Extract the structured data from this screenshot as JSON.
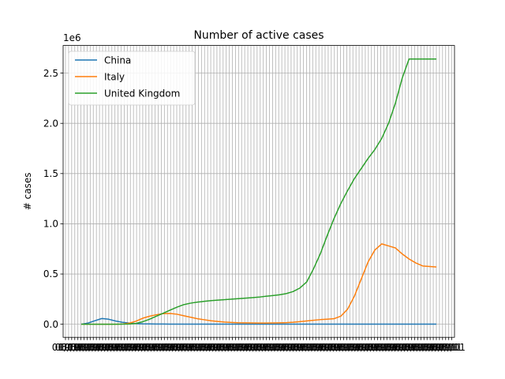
{
  "chart_data": {
    "type": "line",
    "title": "Number of active cases",
    "xlabel": "",
    "ylabel": "# cases",
    "y_offset_text": "1e6",
    "ylim": [
      -0.13,
      2.775
    ],
    "yticks": [
      0.0,
      0.5,
      1.0,
      1.5,
      2.0,
      2.5
    ],
    "ytick_labels": [
      "0.0",
      "0.5",
      "1.0",
      "1.5",
      "2.0",
      "2.5"
    ],
    "grid": true,
    "legend_position": "top-left",
    "x": [
      "2020-01-22",
      "2020-01-29",
      "2020-02-05",
      "2020-02-12",
      "2020-02-19",
      "2020-02-26",
      "2020-03-04",
      "2020-03-11",
      "2020-03-18",
      "2020-03-25",
      "2020-04-01",
      "2020-04-08",
      "2020-04-15",
      "2020-04-22",
      "2020-04-29",
      "2020-05-06",
      "2020-05-13",
      "2020-05-20",
      "2020-05-27",
      "2020-06-03",
      "2020-06-10",
      "2020-06-17",
      "2020-06-24",
      "2020-07-01",
      "2020-07-08",
      "2020-07-15",
      "2020-07-22",
      "2020-07-29",
      "2020-08-05",
      "2020-08-12",
      "2020-08-19",
      "2020-08-26",
      "2020-09-02",
      "2020-09-09",
      "2020-09-16",
      "2020-09-23",
      "2020-09-30",
      "2020-10-07",
      "2020-10-14",
      "2020-10-21",
      "2020-10-28",
      "2020-11-04",
      "2020-11-11",
      "2020-11-18",
      "2020-11-25",
      "2020-12-02",
      "2020-12-09",
      "2020-12-16",
      "2020-12-23",
      "2020-12-30",
      "2021-01-06",
      "2021-01-13",
      "2021-01-18"
    ],
    "xtick_labels": [
      "01/01",
      "01/15",
      "02/01",
      "02/15",
      "03/01",
      "03/15",
      "04/01",
      "04/15",
      "05/01",
      "05/15",
      "06/01",
      "06/15",
      "07/01",
      "07/15",
      "08/01",
      "08/15",
      "09/01",
      "09/15",
      "10/01",
      "10/15",
      "11/01",
      "11/15",
      "12/01",
      "12/15",
      "01/01",
      "01/15",
      "02/01",
      "02/15",
      "03/01",
      "03/15",
      "04/01",
      "04/15",
      "05/01",
      "05/15",
      "06/01",
      "06/15",
      "07/01",
      "07/15",
      "08/01",
      "08/15",
      "09/01",
      "09/15",
      "10/01",
      "10/15",
      "11/01",
      "11/15",
      "12/01",
      "12/15",
      "01/01",
      "01/15",
      "02/01",
      "02/15",
      "03/01",
      "03/15",
      "04/01",
      "04/15",
      "05/01",
      "05/15",
      "06/01",
      "06/15",
      "07/01",
      "07/15",
      "08/01",
      "08/15",
      "09/01",
      "09/15",
      "10/01",
      "10/15",
      "11/01",
      "11/15",
      "12/01",
      "12/15",
      "01/01",
      "01/15",
      "02/01",
      "02/15",
      "03/01",
      "03/15",
      "04/01",
      "04/15",
      "05/01",
      "05/15",
      "06/01",
      "06/15",
      "07/01",
      "07/15",
      "08/01",
      "08/15",
      "09/01",
      "09/15",
      "10/01",
      "10/15",
      "11/01",
      "11/15",
      "12/01",
      "12/15",
      "01/01",
      "01/15",
      "02/01",
      "02/15",
      "03/01",
      "03/15",
      "04/01",
      "04/15",
      "05/01",
      "05/15",
      "06/01",
      "06/15",
      "07/01",
      "07/15",
      "08/01",
      "08/15",
      "09/01",
      "09/15",
      "10/01",
      "10/15",
      "11/01",
      "11/15",
      "12/01",
      "12/15",
      "01/01",
      "01/15",
      "02/01",
      "02/15",
      "03/01",
      "03/15",
      "04/01",
      "04/15",
      "05/01",
      "05/15",
      "06/01",
      "06/15",
      "07/01",
      "07/15",
      "08/01",
      "08/15",
      "09/01",
      "09/15",
      "10/01",
      "10/15",
      "11/01",
      "11/15",
      "12/01",
      "12/15",
      "01/01",
      "01/15",
      "02/01",
      "02/15",
      "03/01",
      "03/15",
      "04/01",
      "04/15",
      "05/01",
      "05/15",
      "06/01",
      "06/15",
      "07/01",
      "07/15",
      "08/01",
      "08/15",
      "09/01",
      "09/15",
      "10/01",
      "10/15",
      "11/01",
      "11/15",
      "12/01",
      "12/15",
      "01/01",
      "01/15",
      "02/01",
      "02/15",
      "03/01",
      "03/15",
      "04/01",
      "04/15",
      "05/01",
      "05/15",
      "06/01",
      "06/15",
      "07/01",
      "07/15",
      "08/01",
      "08/15",
      "09/01",
      "09/15",
      "10/01",
      "10/15",
      "11/01",
      "11/15",
      "12/01",
      "12/15",
      "01/01",
      "01/15",
      "02/01",
      "02/15",
      "03/01",
      "03/15",
      "04/01",
      "04/15",
      "05/01",
      "05/15",
      "06/01",
      "06/15",
      "07/01",
      "07/15",
      "08/01",
      "08/15",
      "09/01",
      "09/15",
      "10/01",
      "10/15",
      "11/01",
      "11/15",
      "12/01",
      "12/15",
      "01/01",
      "01/15",
      "02/01",
      "02/15",
      "03/01",
      "03/15",
      "04/01",
      "04/15",
      "05/01",
      "05/15",
      "06/01",
      "06/15",
      "07/01",
      "07/15",
      "08/01",
      "08/15",
      "09/01",
      "09/15",
      "10/01",
      "10/15",
      "11/01",
      "11/15",
      "12/01",
      "12/15",
      "01/01",
      "01/15",
      "02/01",
      "02/15",
      "03/01",
      "03/15",
      "04/01",
      "04/15",
      "05/01",
      "05/15",
      "06/01",
      "06/15",
      "07/01",
      "07/15",
      "08/01",
      "08/15",
      "09/01",
      "09/15",
      "10/01",
      "10/15",
      "11/01",
      "11/15",
      "12/01",
      "12/15",
      "01/01",
      "01/15",
      "02/01",
      "02/15",
      "03/01",
      "03/15",
      "04/01",
      "04/15",
      "05/01",
      "05/15",
      "06/01",
      "06/15",
      "07/01",
      "07/15",
      "08/01",
      "08/15",
      "09/01",
      "09/15",
      "10/01",
      "10/15",
      "11/01",
      "11/15",
      "12/01",
      "12/15",
      "01/01",
      "01/15",
      "02/01",
      "02/15",
      "03/01",
      "03/15",
      "04/01",
      "04/15",
      "05/01",
      "05/15",
      "06/01",
      "06/15",
      "07/01",
      "07/15",
      "08/01",
      "08/15",
      "09/01",
      "09/15",
      "10/01",
      "10/15",
      "11/01",
      "11/15",
      "12/01",
      "12/15",
      "01/01",
      "01/15",
      "02/01",
      "02/15",
      "03/01",
      "03/15",
      "04/01",
      "04/15",
      "05/01",
      "05/15",
      "06/01",
      "06/15",
      "07/01",
      "07/15",
      "08/01",
      "08/15",
      "09/01",
      "09/15",
      "10/01",
      "10/15",
      "11/01",
      "11/15",
      "12/01",
      "12/15",
      "01/01",
      "01/15",
      "02/01",
      "02/15",
      "03/01",
      "03/15",
      "04/01",
      "04/15",
      "05/01",
      "05/15",
      "06/01",
      "06/15",
      "07/01",
      "07/15",
      "08/01",
      "08/15",
      "09/01",
      "09/15",
      "10/01",
      "10/15",
      "11/01",
      "11/15",
      "12/01",
      "12/15",
      "01/01",
      "01/15",
      "02/01",
      "02/15",
      "03/01",
      "03/15",
      "04/01",
      "04/15",
      "05/01",
      "05/15",
      "06/01",
      "06/15",
      "07/01",
      "07/15",
      "08/01",
      "08/15",
      "09/01",
      "09/15",
      "10/01",
      "10/15",
      "11/01",
      "11/15",
      "12/01",
      "12/15",
      "01/01",
      "01/15",
      "02/01",
      "02/15",
      "03/01",
      "03/15",
      "04/01",
      "04/15",
      "05/01",
      "05/15",
      "06/01",
      "06/15",
      "07/01",
      "07/15",
      "08/01",
      "08/15",
      "09/01",
      "09/15",
      "10/01",
      "10/15",
      "11/01",
      "11/15",
      "12/01",
      "12/15",
      "01/01",
      "01/15",
      "02/01",
      "02/15",
      "03/01",
      "03/15",
      "04/01",
      "04/15",
      "05/01",
      "05/15",
      "06/01",
      "06/15",
      "07/01",
      "07/15",
      "08/01",
      "08/15",
      "09/01",
      "09/15",
      "10/01",
      "10/15",
      "11/01",
      "11/15",
      "12/01",
      "12/15",
      "01/01",
      "01/15",
      "02/01",
      "02/15",
      "03/01",
      "03/15",
      "04/01",
      "04/15",
      "05/01",
      "05/15",
      "06/01",
      "06/15",
      "07/01",
      "07/15",
      "08/01",
      "08/15",
      "09/01",
      "09/15",
      "10/01",
      "10/15",
      "11/01",
      "11/15",
      "12/01",
      "12/15",
      "01/01",
      "01/15",
      "02/01",
      "02/15",
      "03/01",
      "03/15",
      "04/01",
      "04/15",
      "05/01",
      "05/15",
      "06/01",
      "06/15",
      "07/01",
      "07/15",
      "08/01",
      "08/15",
      "09/01",
      "09/15",
      "10/01",
      "10/15",
      "11/01",
      "11/15",
      "12/01",
      "12/15",
      "01/01",
      "01/15",
      "02/01",
      "02/15",
      "03/01",
      "03/15",
      "04/01",
      "04/15",
      "05/01",
      "05/15",
      "06/01",
      "06/15",
      "07/01",
      "07/15",
      "08/01",
      "08/15",
      "09/01",
      "09/15",
      "10/01",
      "10/15",
      "11/01",
      "11/15",
      "12/01",
      "12/15",
      "01/01",
      "01/15",
      "02/01",
      "02/15",
      "03/01",
      "03/15",
      "04/01",
      "04/15",
      "05/01",
      "05/15",
      "06/01",
      "06/15",
      "07/01",
      "07/15",
      "08/01",
      "08/15",
      "09/01",
      "09/15",
      "10/01",
      "10/15",
      "11/01",
      "11/15",
      "12/01",
      "12/15",
      "01/01",
      "01/15",
      "02/01",
      "02/15",
      "03/01",
      "03/15",
      "04/01",
      "04/15",
      "05/01",
      "05/15",
      "06/01",
      "06/15",
      "07/01",
      "07/15",
      "08/01",
      "08/15",
      "09/01",
      "09/15",
      "10/01",
      "10/15",
      "11/01",
      "11/15",
      "12/01",
      "12/15",
      "01/01",
      "01/15",
      "02/01",
      "02/15",
      "03/01",
      "03/15",
      "04/01",
      "04/15",
      "05/01",
      "05/15",
      "06/01",
      "06/15",
      "07/01",
      "07/15",
      "08/01",
      "08/15",
      "09/01",
      "09/15",
      "10/01",
      "10/15",
      "11/01",
      "11/15",
      "12/01",
      "12/15",
      "01/01",
      "01/15",
      "02/01",
      "02/15",
      "03/01",
      "03/15",
      "04/01",
      "04/15",
      "05/01",
      "05/15",
      "06/01",
      "06/15",
      "07/01",
      "07/15",
      "08/01",
      "08/15",
      "09/01",
      "09/15",
      "10/01",
      "10/15",
      "11/01",
      "11/15",
      "12/01",
      "12/15",
      "01/01",
      "01/15",
      "02/01",
      "02/15",
      "03/01",
      "03/15",
      "04/01",
      "04/15",
      "05/01",
      "05/15",
      "06/01",
      "06/15",
      "07/01",
      "07/15",
      "08/01",
      "08/15",
      "09/01",
      "09/15",
      "10/01",
      "10/15",
      "11/01",
      "11/15",
      "12/01",
      "12/15",
      "01/01",
      "01/15",
      "02/01",
      "02/15",
      "03/01",
      "03/15",
      "04/01",
      "04/15",
      "05/01",
      "05/15",
      "06/01",
      "06/15",
      "07/01",
      "07/15",
      "08/01",
      "08/15",
      "09/01",
      "09/15",
      "10/01",
      "10/15",
      "11/01",
      "11/15",
      "12/01",
      "12/15",
      "01/01",
      "01/15",
      "02/01",
      "02/15",
      "03/01",
      "03/15",
      "04/01",
      "04/15",
      "05/01",
      "05/15",
      "06/01",
      "06/15",
      "07/01",
      "07/15",
      "08/01",
      "08/15",
      "09/01",
      "09/15",
      "10/01",
      "10/15",
      "11/01",
      "11/15",
      "12/01",
      "12/15",
      "01/01",
      "01/15",
      "02/01",
      "02/15",
      "03/01",
      "03/15",
      "04/01",
      "04/15",
      "05/01",
      "05/15",
      "06/01",
      "06/15",
      "07/01",
      "07/15",
      "08/01",
      "08/15",
      "09/01",
      "09/15",
      "10/01",
      "10/15",
      "11/01",
      "11/15",
      "12/01",
      "12/15",
      "01/01",
      "01/15",
      "02/01",
      "02/15",
      "03/01",
      "03/15",
      "04/01",
      "04/15",
      "05/01",
      "05/15",
      "06/01",
      "06/15",
      "07/01",
      "07/15",
      "08/01",
      "08/15",
      "09/01",
      "09/15",
      "10/01",
      "10/15",
      "11/01",
      "11/15",
      "12/01",
      "12/15",
      "01/01",
      "01/15",
      "02/01",
      "02/15",
      "03/01",
      "03/15",
      "04/01",
      "04/15",
      "05/01",
      "05/15",
      "06/01",
      "06/15",
      "07/01",
      "07/15",
      "08/01",
      "08/15",
      "09/01",
      "09/15",
      "10/01",
      "10/15",
      "11/01",
      "11/15",
      "12/01",
      "12/15",
      "01/01",
      "01/15",
      "02/01",
      "02/15",
      "03/01",
      "03/15",
      "04/01",
      "04/15",
      "05/01",
      "05/15",
      "06/01",
      "06/15",
      "07/01",
      "07/15",
      "08/01",
      "08/15",
      "09/01",
      "09/15",
      "10/01",
      "10/15",
      "11/01",
      "11/15",
      "12/01",
      "12/15",
      "01/01",
      "01/15",
      "02/01",
      "02/15",
      "03/01",
      "03/15",
      "04/01",
      "04/15",
      "05/01",
      "05/15",
      "06/01",
      "06/15",
      "07/01",
      "07/15",
      "08/01",
      "08/15",
      "09/01",
      "09/15",
      "10/01",
      "10/15",
      "11/01",
      "11/15",
      "12/01",
      "12/15",
      "01/01",
      "01/15",
      "02/01",
      "02/15",
      "03/01",
      "03/15",
      "04/01",
      "04/15",
      "05/01",
      "05/15",
      "06/01",
      "06/15",
      "07/01",
      "07/15",
      "08/01",
      "08/15",
      "09/01",
      "09/15",
      "10/01",
      "10/15",
      "11/01",
      "11/15",
      "12/01",
      "12/15",
      "01/01",
      "01/15",
      "02/01",
      "02/15",
      "03/01",
      "03/15",
      "04/01",
      "04/15",
      "05/01",
      "05/15",
      "06/01",
      "06/15",
      "07/01",
      "07/15",
      "08/01",
      "08/15",
      "09/01",
      "09/15",
      "10/01",
      "10/15",
      "11/01",
      "11/15",
      "12/01",
      "12/15",
      "01/01",
      "01/15",
      "02/01",
      "02/15",
      "03/01",
      "03/15",
      "04/01",
      "04/15",
      "05/01",
      "05/15",
      "06/01",
      "06/15",
      "07/01",
      "07/15",
      "08/01",
      "08/15",
      "09/01",
      "09/15",
      "10/01",
      "10/15",
      "11/01",
      "11/15",
      "12/01",
      "12/15",
      "01/01",
      "01/15",
      "02/01",
      "02/15",
      "03/01",
      "03/15",
      "04/01",
      "04/15",
      "05/01",
      "05/15",
      "06/01",
      "06/15",
      "07/01",
      "07/15",
      "08/01",
      "08/15",
      "09/01",
      "09/15",
      "10/01",
      "10/15",
      "11/01",
      "11/15",
      "12/01",
      "12/15",
      "01/01",
      "01/15",
      "02/01",
      "02/15",
      "03/01",
      "03/15",
      "04/01",
      "04/15",
      "05/01",
      "05/15",
      "06/01",
      "06/15",
      "07/01",
      "07/15",
      "08/01",
      "08/15",
      "09/01",
      "09/15",
      "10/01",
      "10/15",
      "11/01",
      "11/15",
      "12/01",
      "12/15",
      "01/01",
      "01/15",
      "02/01",
      "02/15",
      "03/01",
      "03/15",
      "04/01",
      "04/15",
      "05/01",
      "05/15",
      "06/01",
      "06/15",
      "07/01",
      "07/15",
      "08/01",
      "08/15",
      "09/01",
      "09/15",
      "10/01",
      "10/15",
      "11/01",
      "11/15",
      "12/01",
      "12/15",
      "01/01",
      "01/15",
      "02/01",
      "02/15",
      "03/01",
      "03/15",
      "04/01",
      "04/15",
      "05/01",
      "05/15",
      "06/01",
      "06/15",
      "07/01",
      "07/15",
      "08/01",
      "08/15",
      "09/01",
      "09/15",
      "10/01",
      "10/15",
      "11/01",
      "11/15",
      "12/01",
      "12/15",
      "01/01",
      "01/15",
      "02/01",
      "02/15",
      "03/01",
      "03/15",
      "04/01",
      "04/15",
      "05/01",
      "05/15",
      "06/01",
      "06/15",
      "07/01",
      "07/15",
      "08/01",
      "08/15",
      "09/01",
      "09/15",
      "10/01",
      "10/15",
      "11/01",
      "11/15",
      "12/01",
      "12/15",
      "01/01",
      "01/15",
      "02/01",
      "02/15",
      "03/01",
      "03/15",
      "04/01",
      "04/15",
      "05/01",
      "05/15",
      "06/01",
      "06/15",
      "07/01",
      "07/15",
      "08/01",
      "08/15",
      "09/01",
      "09/15",
      "10/01",
      "10/15",
      "11/01",
      "11/15",
      "12/01",
      "12/15"
    ],
    "series": [
      {
        "name": "China",
        "color": "#1f77b4",
        "values": [
          0.0005,
          0.012,
          0.035,
          0.057,
          0.05,
          0.033,
          0.02,
          0.012,
          0.007,
          0.004,
          0.003,
          0.002,
          0.002,
          0.001,
          0.001,
          0.001,
          0.001,
          0.001,
          0.001,
          0.001,
          0.001,
          0.001,
          0.001,
          0.001,
          0.001,
          0.001,
          0.001,
          0.001,
          0.001,
          0.001,
          0.001,
          0.001,
          0.001,
          0.001,
          0.001,
          0.001,
          0.001,
          0.001,
          0.001,
          0.001,
          0.001,
          0.001,
          0.001,
          0.001,
          0.001,
          0.001,
          0.001,
          0.001,
          0.001,
          0.001,
          0.001,
          0.001,
          0.001
        ]
      },
      {
        "name": "Italy",
        "color": "#ff7f0e",
        "values": [
          0.0,
          0.0,
          0.0,
          0.0,
          0.0,
          0.0,
          0.002,
          0.01,
          0.03,
          0.06,
          0.08,
          0.095,
          0.105,
          0.107,
          0.1,
          0.085,
          0.07,
          0.055,
          0.045,
          0.035,
          0.028,
          0.022,
          0.018,
          0.015,
          0.014,
          0.013,
          0.012,
          0.012,
          0.013,
          0.014,
          0.016,
          0.02,
          0.026,
          0.033,
          0.04,
          0.046,
          0.05,
          0.055,
          0.08,
          0.15,
          0.28,
          0.45,
          0.62,
          0.74,
          0.8,
          0.78,
          0.76,
          0.7,
          0.65,
          0.61,
          0.58,
          0.575,
          0.57
        ]
      },
      {
        "name": "United Kingdom",
        "color": "#2ca02c",
        "values": [
          0.0,
          0.0,
          0.0,
          0.0,
          0.0,
          0.0,
          0.001,
          0.002,
          0.008,
          0.025,
          0.05,
          0.08,
          0.11,
          0.14,
          0.17,
          0.195,
          0.21,
          0.22,
          0.228,
          0.235,
          0.24,
          0.245,
          0.25,
          0.255,
          0.26,
          0.265,
          0.27,
          0.278,
          0.285,
          0.293,
          0.305,
          0.325,
          0.36,
          0.42,
          0.55,
          0.7,
          0.88,
          1.05,
          1.2,
          1.33,
          1.45,
          1.55,
          1.65,
          1.74,
          1.85,
          2.0,
          2.2,
          2.45,
          2.64,
          2.64,
          2.64,
          2.64,
          2.64
        ]
      }
    ]
  }
}
